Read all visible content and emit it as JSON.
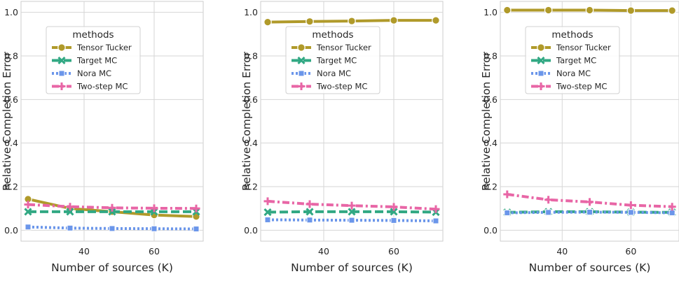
{
  "chart_data": [
    {
      "type": "line",
      "xlabel": "Number of sources (K)",
      "ylabel": "Relative Completion Error",
      "xlim": [
        22,
        74
      ],
      "ylim": [
        -0.05,
        1.05
      ],
      "xticks": [
        40,
        60
      ],
      "xtick_labels": [
        "40",
        "60"
      ],
      "yticks": [
        0.0,
        0.2,
        0.4,
        0.6,
        0.8,
        1.0
      ],
      "ytick_labels": [
        "0.0",
        "0.2",
        "0.4",
        "0.6",
        "0.8",
        "1.0"
      ],
      "grid": true,
      "legend": {
        "title": "methods",
        "position": "upper-left"
      },
      "x": [
        24,
        36,
        48,
        60,
        72
      ],
      "series": [
        {
          "name": "Tensor Tucker",
          "values": [
            0.143,
            0.1,
            0.085,
            0.07,
            0.063
          ]
        },
        {
          "name": "Target MC",
          "values": [
            0.085,
            0.085,
            0.085,
            0.085,
            0.085
          ]
        },
        {
          "name": "Nora MC",
          "values": [
            0.015,
            0.01,
            0.008,
            0.007,
            0.006
          ]
        },
        {
          "name": "Two-step MC",
          "values": [
            0.118,
            0.108,
            0.103,
            0.101,
            0.1
          ]
        }
      ]
    },
    {
      "type": "line",
      "xlabel": "Number of sources (K)",
      "ylabel": "Relative Completion Error",
      "xlim": [
        22,
        74
      ],
      "ylim": [
        -0.05,
        1.05
      ],
      "xticks": [
        40,
        60
      ],
      "xtick_labels": [
        "40",
        "60"
      ],
      "yticks": [
        0.0,
        0.2,
        0.4,
        0.6,
        0.8,
        1.0
      ],
      "ytick_labels": [
        "0.0",
        "0.2",
        "0.4",
        "0.6",
        "0.8",
        "1.0"
      ],
      "grid": true,
      "legend": {
        "title": "methods",
        "position": "upper-left"
      },
      "x": [
        24,
        36,
        48,
        60,
        72
      ],
      "series": [
        {
          "name": "Tensor Tucker",
          "values": [
            0.955,
            0.958,
            0.96,
            0.963,
            0.963
          ]
        },
        {
          "name": "Target MC",
          "values": [
            0.083,
            0.085,
            0.085,
            0.085,
            0.083
          ]
        },
        {
          "name": "Nora MC",
          "values": [
            0.048,
            0.047,
            0.046,
            0.045,
            0.043
          ]
        },
        {
          "name": "Two-step MC",
          "values": [
            0.133,
            0.12,
            0.113,
            0.107,
            0.097
          ]
        }
      ]
    },
    {
      "type": "line",
      "xlabel": "Number of sources (K)",
      "ylabel": "Relative Completion Error",
      "xlim": [
        22,
        74
      ],
      "ylim": [
        -0.05,
        1.05
      ],
      "xticks": [
        40,
        60
      ],
      "xtick_labels": [
        "40",
        "60"
      ],
      "yticks": [
        0.0,
        0.2,
        0.4,
        0.6,
        0.8,
        1.0
      ],
      "ytick_labels": [
        "0.0",
        "0.2",
        "0.4",
        "0.6",
        "0.8",
        "1.0"
      ],
      "grid": true,
      "legend": {
        "title": "methods",
        "position": "upper-left"
      },
      "x": [
        24,
        36,
        48,
        60,
        72
      ],
      "series": [
        {
          "name": "Tensor Tucker",
          "values": [
            1.01,
            1.01,
            1.01,
            1.008,
            1.008
          ]
        },
        {
          "name": "Target MC",
          "values": [
            0.082,
            0.085,
            0.085,
            0.083,
            0.082
          ]
        },
        {
          "name": "Nora MC",
          "values": [
            0.08,
            0.082,
            0.083,
            0.082,
            0.08
          ]
        },
        {
          "name": "Two-step MC",
          "values": [
            0.165,
            0.14,
            0.13,
            0.115,
            0.108
          ]
        }
      ]
    }
  ],
  "series_styles": [
    {
      "color": "#b09a2a",
      "marker": "circle",
      "dash": "solid"
    },
    {
      "color": "#31a883",
      "marker": "x",
      "dash": "long-dash"
    },
    {
      "color": "#6b96ea",
      "marker": "square",
      "dash": "dotted"
    },
    {
      "color": "#e866a6",
      "marker": "plus",
      "dash": "dash-dot"
    }
  ]
}
